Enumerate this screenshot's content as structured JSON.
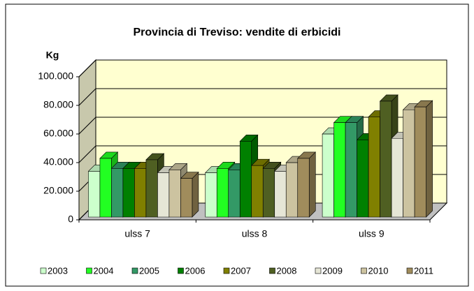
{
  "chart_data": {
    "type": "bar3d",
    "title": "Provincia di Treviso: vendite di erbicidi",
    "y_label": "Kg",
    "categories": [
      "ulss 7",
      "ulss 8",
      "ulss 9"
    ],
    "series": [
      {
        "name": "2003",
        "color": "#ccffcc",
        "values": [
          32000,
          31000,
          58000
        ]
      },
      {
        "name": "2004",
        "color": "#22ff22",
        "values": [
          41000,
          34000,
          66000
        ]
      },
      {
        "name": "2005",
        "color": "#339966",
        "values": [
          34000,
          33000,
          66000
        ]
      },
      {
        "name": "2006",
        "color": "#008000",
        "values": [
          34000,
          53000,
          54000
        ]
      },
      {
        "name": "2007",
        "color": "#808000",
        "values": [
          34000,
          36000,
          70000
        ]
      },
      {
        "name": "2008",
        "color": "#4f5f22",
        "values": [
          40000,
          34000,
          81000
        ]
      },
      {
        "name": "2009",
        "color": "#e6e6d6",
        "values": [
          31000,
          32000,
          55000
        ]
      },
      {
        "name": "2010",
        "color": "#ccc3a0",
        "values": [
          33000,
          38000,
          75000
        ]
      },
      {
        "name": "2011",
        "color": "#a08c5c",
        "values": [
          27000,
          41000,
          77000
        ]
      }
    ],
    "ylim": [
      0,
      100000
    ],
    "yticks": [
      0,
      {
        "value": 20000,
        "label": "20.000"
      },
      {
        "value": 40000,
        "label": "40.000"
      },
      {
        "value": 60000,
        "label": "60.000"
      },
      {
        "value": 80000,
        "label": "80.000"
      },
      {
        "value": 100000,
        "label": "100.000"
      }
    ],
    "grid": true
  }
}
